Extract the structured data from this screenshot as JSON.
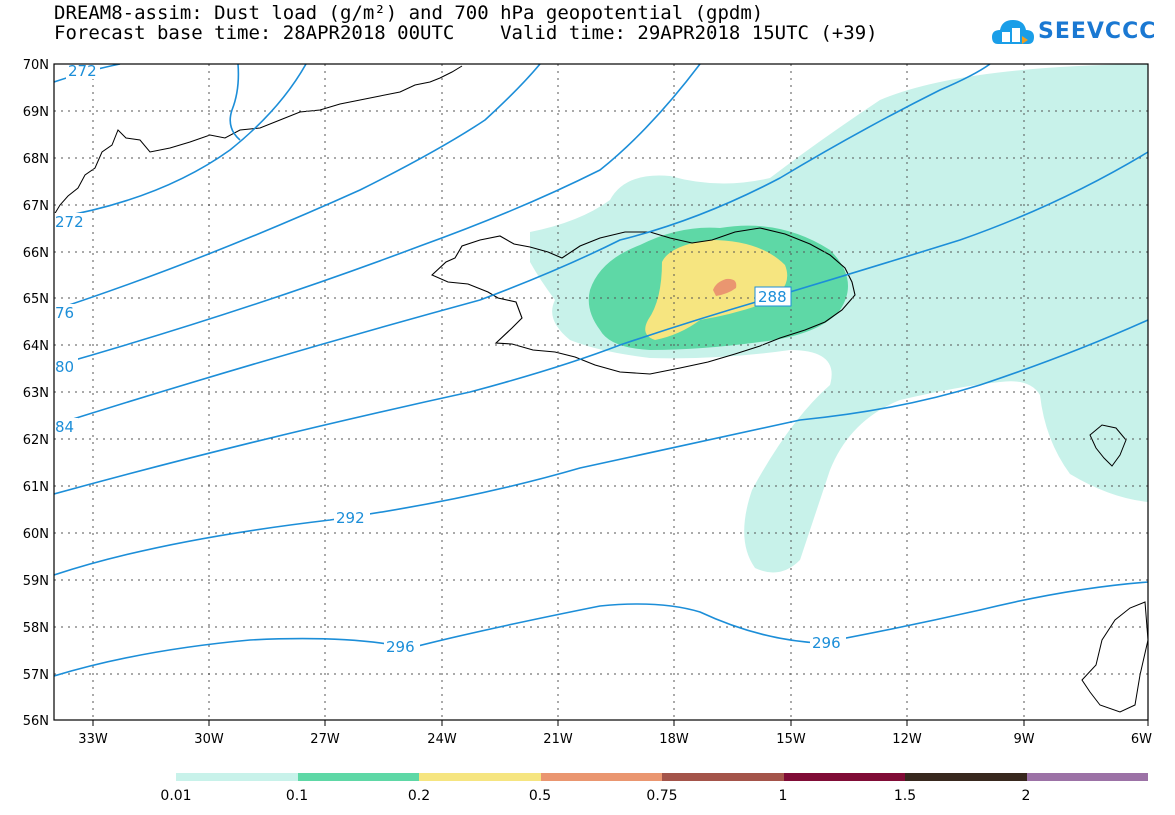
{
  "title": {
    "line1": "DREAM8-assim: Dust load (g/m²) and 700 hPa geopotential (gpdm)",
    "line2": "Forecast base time: 28APR2018 00UTC    Valid time: 29APR2018 15UTC (+39)"
  },
  "logo": {
    "text": "SEEVCCC",
    "icon": "cloud-logo-icon"
  },
  "lat_labels": [
    "70N",
    "69N",
    "68N",
    "67N",
    "66N",
    "65N",
    "64N",
    "63N",
    "62N",
    "61N",
    "60N",
    "59N",
    "58N",
    "57N",
    "56N"
  ],
  "lon_labels": [
    "33W",
    "30W",
    "27W",
    "24W",
    "21W",
    "18W",
    "15W",
    "12W",
    "9W",
    "6W"
  ],
  "contour_labels": [
    "272",
    "272",
    "76",
    "80",
    "84",
    "288",
    "292",
    "296",
    "296"
  ],
  "legend": {
    "labels": [
      "0.01",
      "0.1",
      "0.2",
      "0.5",
      "0.75",
      "1",
      "1.5",
      "2"
    ],
    "colors": [
      "#c8f2ea",
      "#5ed8a6",
      "#f6e580",
      "#ea9670",
      "#a4544a",
      "#800c36",
      "#38281e",
      "#9c72a6"
    ]
  },
  "colors": {
    "contour": "#1c8ed8",
    "dust_lowest": "#c8f2ea",
    "dust_low": "#5ed8a6",
    "dust_mid": "#f6e580",
    "dust_high": "#ea9670"
  }
}
